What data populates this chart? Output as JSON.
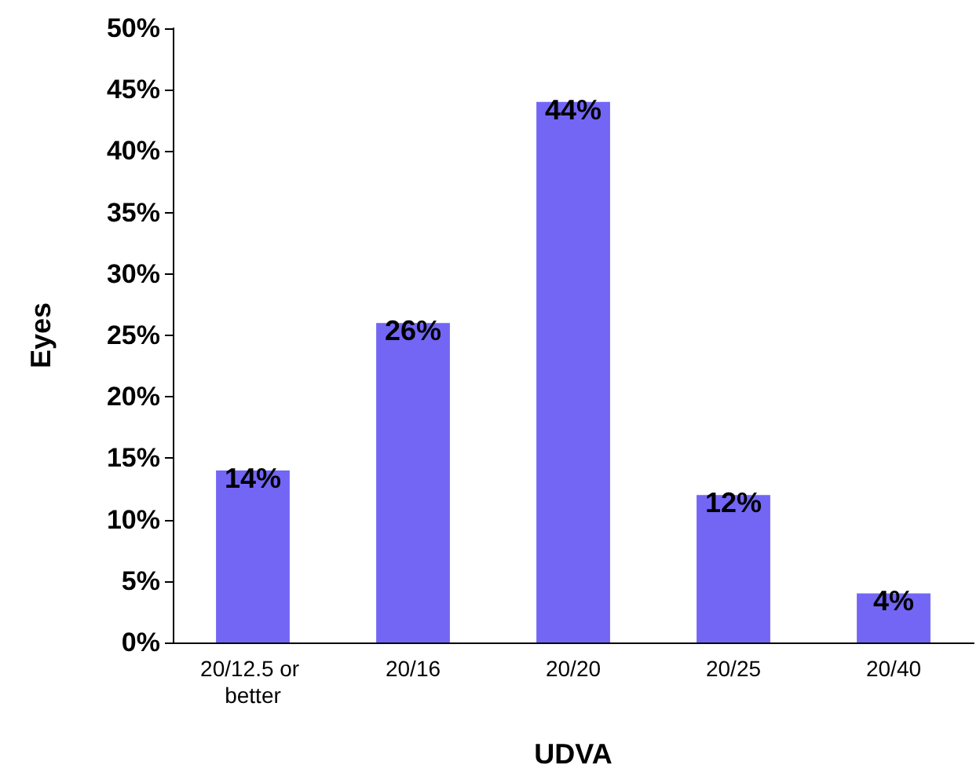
{
  "chart_data": {
    "type": "bar",
    "xlabel": "UDVA",
    "ylabel": "Eyes",
    "categories": [
      "20/12.5 or better",
      "20/16",
      "20/20",
      "20/25",
      "20/40"
    ],
    "values": [
      14,
      26,
      44,
      12,
      4
    ],
    "color": "#7366f5",
    "value_labels": [
      "14%",
      "26%",
      "44%",
      "12%",
      "4%"
    ],
    "ylim": [
      0,
      50
    ],
    "yticks": [
      {
        "value": 0,
        "label": "0%"
      },
      {
        "value": 5,
        "label": "5%"
      },
      {
        "value": 10,
        "label": "10%"
      },
      {
        "value": 15,
        "label": "15%"
      },
      {
        "value": 20,
        "label": "20%"
      },
      {
        "value": 25,
        "label": "25%"
      },
      {
        "value": 30,
        "label": "30%"
      },
      {
        "value": 35,
        "label": "35%"
      },
      {
        "value": 40,
        "label": "40%"
      },
      {
        "value": 45,
        "label": "45%"
      },
      {
        "value": 50,
        "label": "50%"
      }
    ],
    "grid": false
  }
}
